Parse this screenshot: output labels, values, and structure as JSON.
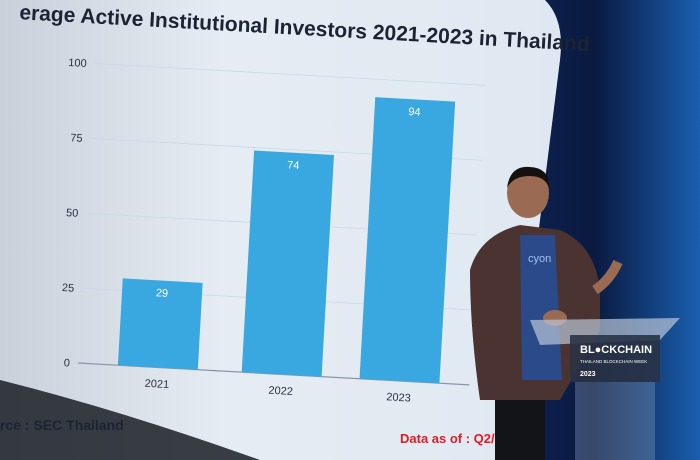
{
  "chart_data": {
    "type": "bar",
    "title": "erage Active Institutional Investors 2021-2023 in Thailand",
    "categories": [
      "2021",
      "2022",
      "2023"
    ],
    "values": [
      29,
      74,
      94
    ],
    "data_labels": [
      "29",
      "74",
      "94"
    ],
    "yticks": [
      "0",
      "25",
      "50",
      "75",
      "100"
    ],
    "ylim": [
      0,
      100
    ],
    "grid": true,
    "bar_color": "#3aa8e0"
  },
  "screen": {
    "source": "rce : SEC Thailand",
    "data_as_of": "Data as of : Q2/2"
  },
  "podium": {
    "brand": "BL●CKCHAIN",
    "subtitle": "THAILAND BLOCKCHAIN WEEK",
    "year": "2023"
  },
  "shirt_text": "cyon"
}
